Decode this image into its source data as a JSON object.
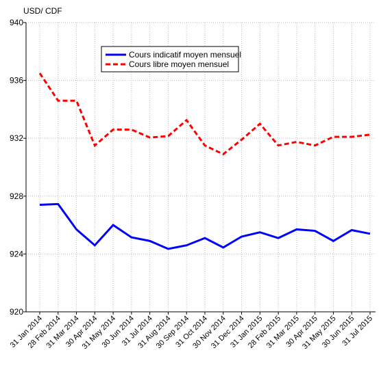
{
  "chart_data": {
    "type": "line",
    "y_axis_label": "USD/ CDF",
    "categories": [
      "31 Jan 2014",
      "28 Feb 2014",
      "31 Mar 2014",
      "30 Apr 2014",
      "31 May 2014",
      "30 Jun 2014",
      "31 Jul 2014",
      "31 Aug 2014",
      "30 Sep 2014",
      "31 Oct 2014",
      "30 Nov 2014",
      "31 Dec 2014",
      "31 Jan 2015",
      "28 Feb 2015",
      "31 Mar 2015",
      "30 Apr 2015",
      "31 May 2015",
      "30 Jun 2015",
      "31 Jul 2015"
    ],
    "series": [
      {
        "name": "Cours indicatif moyen mensuel",
        "color": "#0000ff",
        "dash": false,
        "values": [
          927.4,
          927.45,
          925.7,
          924.6,
          926.0,
          925.15,
          924.9,
          924.35,
          924.6,
          925.1,
          924.45,
          925.2,
          925.5,
          925.1,
          925.7,
          925.6,
          924.9,
          925.65,
          925.4
        ]
      },
      {
        "name": "Cours libre moyen mensuel",
        "color": "#ff0000",
        "dash": true,
        "values": [
          936.5,
          934.6,
          934.6,
          931.5,
          932.6,
          932.6,
          932.05,
          932.15,
          933.25,
          931.5,
          930.9,
          931.9,
          933.0,
          931.5,
          931.75,
          931.5,
          932.1,
          932.1,
          932.25
        ]
      }
    ],
    "ylim": [
      920,
      940
    ],
    "yticks": [
      920,
      924,
      928,
      932,
      936,
      940
    ],
    "grid": true
  }
}
